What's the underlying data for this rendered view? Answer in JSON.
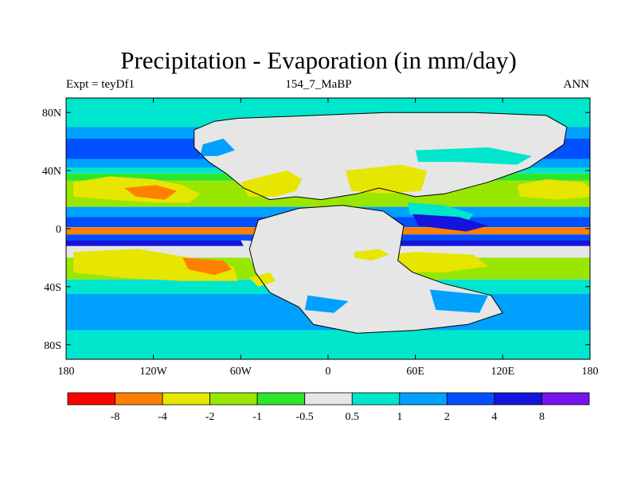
{
  "title": "Precipitation - Evaporation (in mm/day)",
  "subtitle_left": "Expt = teyDf1",
  "subtitle_center": "154_7_MaBP",
  "subtitle_right": "ANN",
  "colors": {
    "land_outline": "#000000",
    "c_lt_-8": "#ff0000",
    "c_-8_-4": "#ff8000",
    "c_-4_-2": "#e6e600",
    "c_-2_-1": "#99e600",
    "c_-1_-0.5": "#2ee62e",
    "c_-0.5_0.5": "#e6e6e6",
    "c_0.5_1": "#00e6cc",
    "c_1_2": "#00a0ff",
    "c_2_4": "#0050ff",
    "c_4_8": "#1414dc",
    "c_gt_8": "#7814f0"
  },
  "chart_data": {
    "type": "heatmap",
    "title": "Precipitation - Evaporation (in mm/day)",
    "xlim": [
      -180,
      180
    ],
    "ylim": [
      -90,
      90
    ],
    "x_ticks": [
      {
        "value": -180,
        "label": "180"
      },
      {
        "value": -120,
        "label": "120W"
      },
      {
        "value": -60,
        "label": "60W"
      },
      {
        "value": 0,
        "label": "0"
      },
      {
        "value": 60,
        "label": "60E"
      },
      {
        "value": 120,
        "label": "120E"
      },
      {
        "value": 180,
        "label": "180"
      }
    ],
    "y_ticks": [
      {
        "value": 80,
        "label": "80N"
      },
      {
        "value": 40,
        "label": "40N"
      },
      {
        "value": 0,
        "label": "0"
      },
      {
        "value": -40,
        "label": "40S"
      },
      {
        "value": -80,
        "label": "80S"
      }
    ],
    "colorbar_levels": [
      "-8",
      "-4",
      "-2",
      "-1",
      "-0.5",
      "0.5",
      "1",
      "2",
      "4",
      "8"
    ],
    "colorbar_colors": [
      "#ff0000",
      "#ff8000",
      "#e6e600",
      "#99e600",
      "#2ee62e",
      "#e6e6e6",
      "#00e6cc",
      "#00a0ff",
      "#0050ff",
      "#1414dc",
      "#7814f0"
    ],
    "zonal_bands": [
      {
        "lat": [
          70,
          90
        ],
        "color": "#00e6cc"
      },
      {
        "lat": [
          62,
          70
        ],
        "color": "#00a0ff"
      },
      {
        "lat": [
          48,
          62
        ],
        "color": "#0050ff"
      },
      {
        "lat": [
          42,
          48
        ],
        "color": "#00a0ff"
      },
      {
        "lat": [
          38,
          42
        ],
        "color": "#00e6cc"
      },
      {
        "lat": [
          33,
          38
        ],
        "color": "#2ee62e"
      },
      {
        "lat": [
          15,
          33
        ],
        "color": "#99e600"
      },
      {
        "lat": [
          8,
          15
        ],
        "color": "#00a0ff"
      },
      {
        "lat": [
          1,
          8
        ],
        "color": "#0050ff"
      },
      {
        "lat": [
          -4,
          1
        ],
        "color": "#ff8000"
      },
      {
        "lat": [
          -8,
          -4
        ],
        "color": "#0050ff"
      },
      {
        "lat": [
          -12,
          -8
        ],
        "color": "#1414dc"
      },
      {
        "lat": [
          -20,
          -12
        ],
        "color": "#e6e6e6"
      },
      {
        "lat": [
          -35,
          -20
        ],
        "color": "#99e600"
      },
      {
        "lat": [
          -45,
          -35
        ],
        "color": "#00e6cc"
      },
      {
        "lat": [
          -70,
          -45
        ],
        "color": "#00a0ff"
      },
      {
        "lat": [
          -90,
          -70
        ],
        "color": "#00e6cc"
      }
    ],
    "regions": [
      {
        "color": "#e6e600",
        "lon_lat": [
          [
            -175,
            32
          ],
          [
            -150,
            36
          ],
          [
            -120,
            34
          ],
          [
            -100,
            30
          ],
          [
            -88,
            24
          ],
          [
            -95,
            18
          ],
          [
            -120,
            18
          ],
          [
            -150,
            20
          ],
          [
            -175,
            22
          ]
        ]
      },
      {
        "color": "#ff8000",
        "lon_lat": [
          [
            -140,
            28
          ],
          [
            -118,
            30
          ],
          [
            -104,
            26
          ],
          [
            -112,
            20
          ],
          [
            -132,
            22
          ]
        ]
      },
      {
        "color": "#e6e600",
        "lon_lat": [
          [
            -175,
            -16
          ],
          [
            -130,
            -14
          ],
          [
            -95,
            -20
          ],
          [
            -65,
            -26
          ],
          [
            -62,
            -36
          ],
          [
            -100,
            -36
          ],
          [
            -140,
            -34
          ],
          [
            -175,
            -30
          ]
        ]
      },
      {
        "color": "#ff8000",
        "lon_lat": [
          [
            -100,
            -20
          ],
          [
            -72,
            -22
          ],
          [
            -66,
            -28
          ],
          [
            -78,
            -32
          ],
          [
            -96,
            -28
          ]
        ]
      },
      {
        "color": "#e6e600",
        "lon_lat": [
          [
            130,
            30
          ],
          [
            150,
            34
          ],
          [
            175,
            32
          ],
          [
            180,
            28
          ],
          [
            180,
            22
          ],
          [
            158,
            20
          ],
          [
            132,
            22
          ]
        ]
      },
      {
        "color": "#e6e600",
        "lon_lat": [
          [
            20,
            -20
          ],
          [
            60,
            -16
          ],
          [
            100,
            -18
          ],
          [
            110,
            -26
          ],
          [
            80,
            -30
          ],
          [
            40,
            -30
          ]
        ]
      },
      {
        "color": "#e6e6e6",
        "lon_lat": [
          [
            -60,
            -8
          ],
          [
            -20,
            -10
          ],
          [
            0,
            -18
          ],
          [
            10,
            -30
          ],
          [
            -20,
            -34
          ],
          [
            -50,
            -28
          ]
        ]
      },
      {
        "color": "#00e6cc",
        "lon_lat": [
          [
            55,
            18
          ],
          [
            80,
            16
          ],
          [
            100,
            10
          ],
          [
            95,
            4
          ],
          [
            70,
            6
          ],
          [
            56,
            10
          ]
        ]
      },
      {
        "color": "#1414dc",
        "lon_lat": [
          [
            58,
            10
          ],
          [
            90,
            8
          ],
          [
            110,
            2
          ],
          [
            95,
            -2
          ],
          [
            62,
            2
          ]
        ]
      }
    ],
    "land_masses": [
      {
        "name": "laurasia",
        "fill": "#e6e6e6",
        "lon_lat": [
          [
            -62,
            76
          ],
          [
            -10,
            78
          ],
          [
            40,
            80
          ],
          [
            100,
            80
          ],
          [
            150,
            78
          ],
          [
            164,
            70
          ],
          [
            162,
            58
          ],
          [
            150,
            50
          ],
          [
            138,
            42
          ],
          [
            110,
            32
          ],
          [
            80,
            24
          ],
          [
            60,
            22
          ],
          [
            35,
            28
          ],
          [
            20,
            24
          ],
          [
            -5,
            20
          ],
          [
            -22,
            22
          ],
          [
            -40,
            20
          ],
          [
            -58,
            28
          ],
          [
            -70,
            38
          ],
          [
            -82,
            46
          ],
          [
            -92,
            56
          ],
          [
            -92,
            68
          ],
          [
            -78,
            74
          ]
        ]
      },
      {
        "name": "gondwana",
        "fill": "#e6e6e6",
        "lon_lat": [
          [
            -48,
            6
          ],
          [
            -20,
            14
          ],
          [
            10,
            16
          ],
          [
            38,
            12
          ],
          [
            52,
            2
          ],
          [
            48,
            -22
          ],
          [
            58,
            -30
          ],
          [
            80,
            -38
          ],
          [
            112,
            -46
          ],
          [
            120,
            -58
          ],
          [
            96,
            -66
          ],
          [
            60,
            -70
          ],
          [
            20,
            -72
          ],
          [
            -10,
            -66
          ],
          [
            -20,
            -54
          ],
          [
            -40,
            -44
          ],
          [
            -50,
            -30
          ],
          [
            -54,
            -14
          ]
        ]
      }
    ],
    "land_overlays": [
      {
        "color": "#e6e600",
        "lon_lat": [
          [
            -60,
            32
          ],
          [
            -45,
            36
          ],
          [
            -28,
            40
          ],
          [
            -18,
            34
          ],
          [
            -22,
            26
          ],
          [
            -36,
            22
          ],
          [
            -55,
            22
          ]
        ]
      },
      {
        "color": "#e6e600",
        "lon_lat": [
          [
            12,
            40
          ],
          [
            50,
            44
          ],
          [
            68,
            40
          ],
          [
            64,
            26
          ],
          [
            38,
            24
          ],
          [
            16,
            26
          ]
        ]
      },
      {
        "color": "#e6e600",
        "lon_lat": [
          [
            18,
            -16
          ],
          [
            35,
            -14
          ],
          [
            42,
            -18
          ],
          [
            30,
            -22
          ],
          [
            18,
            -20
          ]
        ]
      },
      {
        "color": "#e6e600",
        "lon_lat": [
          [
            -54,
            -34
          ],
          [
            -40,
            -30
          ],
          [
            -36,
            -36
          ],
          [
            -48,
            -40
          ]
        ]
      },
      {
        "color": "#00e6cc",
        "lon_lat": [
          [
            60,
            54
          ],
          [
            110,
            56
          ],
          [
            140,
            50
          ],
          [
            130,
            44
          ],
          [
            90,
            46
          ],
          [
            62,
            46
          ]
        ]
      },
      {
        "color": "#00a0ff",
        "lon_lat": [
          [
            -86,
            58
          ],
          [
            -72,
            62
          ],
          [
            -64,
            54
          ],
          [
            -76,
            50
          ],
          [
            -88,
            50
          ]
        ]
      },
      {
        "color": "#00a0ff",
        "lon_lat": [
          [
            70,
            -42
          ],
          [
            110,
            -46
          ],
          [
            104,
            -58
          ],
          [
            74,
            -56
          ]
        ]
      },
      {
        "color": "#00a0ff",
        "lon_lat": [
          [
            -14,
            -46
          ],
          [
            14,
            -50
          ],
          [
            4,
            -58
          ],
          [
            -16,
            -56
          ]
        ]
      }
    ]
  }
}
